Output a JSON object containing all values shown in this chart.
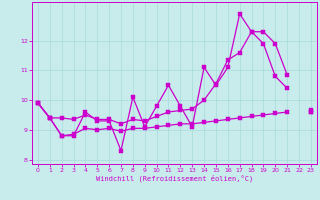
{
  "xlabel": "Windchill (Refroidissement éolien,°C)",
  "bg_color": "#c8ecec",
  "grid_color": "#a8d8d8",
  "line_color": "#cc00cc",
  "x_data": [
    0,
    1,
    2,
    3,
    4,
    5,
    6,
    7,
    8,
    9,
    10,
    11,
    12,
    13,
    14,
    15,
    16,
    17,
    18,
    19,
    20,
    21,
    22,
    23
  ],
  "y_main": [
    9.9,
    9.4,
    8.8,
    8.8,
    9.6,
    9.3,
    9.3,
    8.3,
    10.1,
    9.1,
    9.8,
    10.5,
    9.8,
    9.1,
    11.1,
    10.5,
    11.1,
    12.9,
    12.3,
    11.9,
    10.8,
    10.4,
    null,
    9.6
  ],
  "y_upper": [
    9.9,
    9.4,
    9.4,
    9.35,
    9.5,
    9.35,
    9.35,
    9.2,
    9.35,
    9.3,
    9.45,
    9.6,
    9.65,
    9.7,
    10.0,
    10.55,
    11.35,
    11.6,
    12.3,
    12.3,
    11.9,
    10.85,
    null,
    9.6
  ],
  "y_lower": [
    9.9,
    9.4,
    8.8,
    8.85,
    9.05,
    9.0,
    9.05,
    8.95,
    9.05,
    9.05,
    9.1,
    9.15,
    9.2,
    9.2,
    9.25,
    9.3,
    9.35,
    9.4,
    9.45,
    9.5,
    9.55,
    9.6,
    null,
    9.65
  ],
  "ylim": [
    7.85,
    13.3
  ],
  "xlim": [
    -0.5,
    23.5
  ],
  "yticks": [
    8,
    9,
    10,
    11,
    12
  ],
  "xticks": [
    0,
    1,
    2,
    3,
    4,
    5,
    6,
    7,
    8,
    9,
    10,
    11,
    12,
    13,
    14,
    15,
    16,
    17,
    18,
    19,
    20,
    21,
    22,
    23
  ]
}
